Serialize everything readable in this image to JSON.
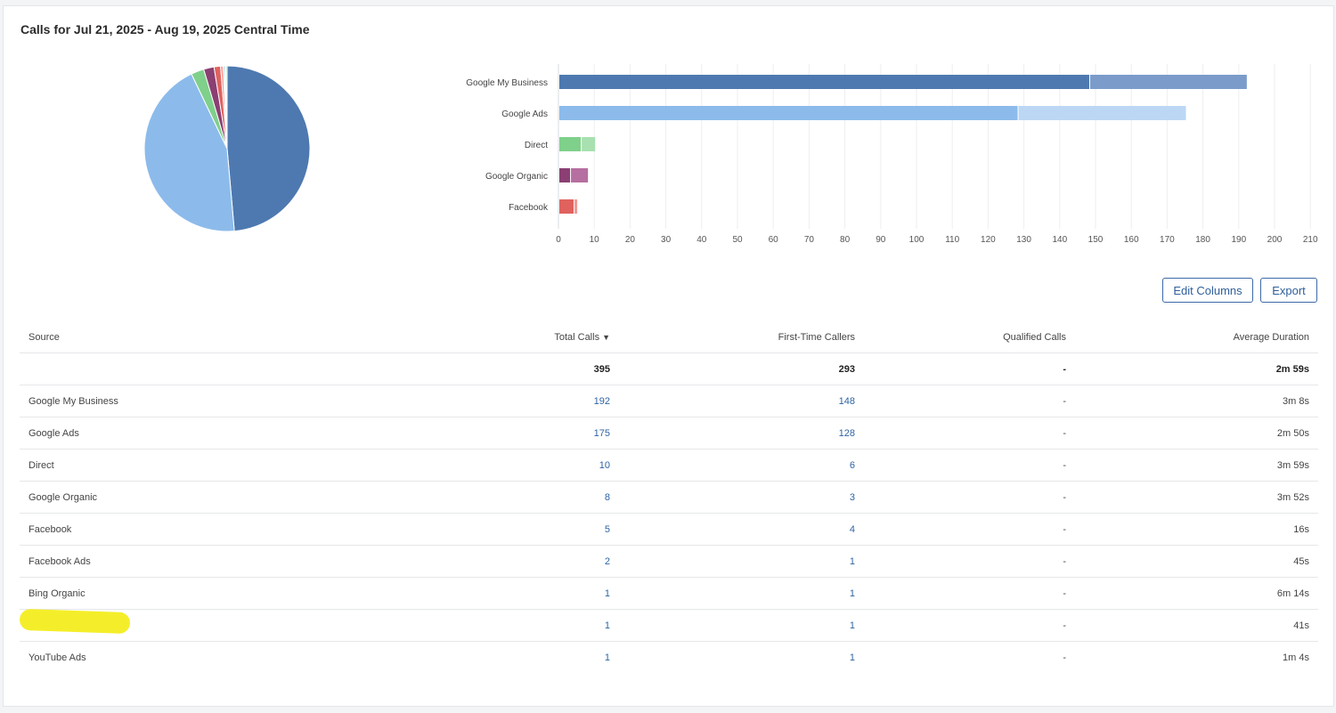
{
  "title": "Calls for Jul 21, 2025 - Aug 19, 2025 Central Time",
  "buttons": {
    "edit_columns": "Edit Columns",
    "export": "Export"
  },
  "colors": {
    "google_my_business": "#4e79b0",
    "google_my_business_light": "#7b9bca",
    "google_ads": "#8cbbeb",
    "google_ads_light": "#bcd7f4",
    "direct": "#7fd08b",
    "direct_light": "#a8e0b0",
    "google_organic": "#8b3f73",
    "google_organic_light": "#b56fa0",
    "facebook": "#e0625e",
    "facebook_light": "#f09a96",
    "teal": "#3fc1c0",
    "text_link": "#2f64a3"
  },
  "chart_data": [
    {
      "type": "pie",
      "series": [
        {
          "category": "Google My Business",
          "value": 192
        },
        {
          "category": "Google Ads",
          "value": 175
        },
        {
          "category": "Direct",
          "value": 10
        },
        {
          "category": "Google Organic",
          "value": 8
        },
        {
          "category": "Facebook",
          "value": 5
        },
        {
          "category": "Facebook Ads",
          "value": 2
        },
        {
          "category": "Bing Organic",
          "value": 1
        },
        {
          "category": "",
          "value": 1
        },
        {
          "category": "YouTube Ads",
          "value": 1
        }
      ],
      "title": ""
    },
    {
      "type": "bar",
      "orientation": "horizontal",
      "stacked": true,
      "categories": [
        "Google My Business",
        "Google Ads",
        "Direct",
        "Google Organic",
        "Facebook"
      ],
      "series": [
        {
          "name": "",
          "values": [
            148,
            128,
            6,
            3,
            4
          ]
        },
        {
          "name": "",
          "values": [
            44,
            47,
            4,
            5,
            1
          ]
        }
      ],
      "x_ticks": [
        0,
        10,
        20,
        30,
        40,
        50,
        60,
        70,
        80,
        90,
        100,
        110,
        120,
        130,
        140,
        150,
        160,
        170,
        180,
        190,
        200,
        210
      ],
      "xlim": [
        0,
        210
      ],
      "grid": true,
      "title": "",
      "xlabel": "",
      "ylabel": ""
    }
  ],
  "table": {
    "headers": {
      "source": "Source",
      "total_calls": "Total Calls",
      "first_time": "First-Time Callers",
      "qualified": "Qualified Calls",
      "avg_duration": "Average Duration"
    },
    "sort_indicator": "▼",
    "total": {
      "total_calls": "395",
      "first_time": "293",
      "qualified": "-",
      "avg_duration": "2m 59s"
    },
    "rows": [
      {
        "source": "Google My Business",
        "total_calls": "192",
        "first_time": "148",
        "qualified": "-",
        "avg_duration": "3m 8s"
      },
      {
        "source": "Google Ads",
        "total_calls": "175",
        "first_time": "128",
        "qualified": "-",
        "avg_duration": "2m 50s"
      },
      {
        "source": "Direct",
        "total_calls": "10",
        "first_time": "6",
        "qualified": "-",
        "avg_duration": "3m 59s"
      },
      {
        "source": "Google Organic",
        "total_calls": "8",
        "first_time": "3",
        "qualified": "-",
        "avg_duration": "3m 52s"
      },
      {
        "source": "Facebook",
        "total_calls": "5",
        "first_time": "4",
        "qualified": "-",
        "avg_duration": "16s"
      },
      {
        "source": "Facebook Ads",
        "total_calls": "2",
        "first_time": "1",
        "qualified": "-",
        "avg_duration": "45s"
      },
      {
        "source": "Bing Organic",
        "total_calls": "1",
        "first_time": "1",
        "qualified": "-",
        "avg_duration": "6m 14s"
      },
      {
        "source": "",
        "total_calls": "1",
        "first_time": "1",
        "qualified": "-",
        "avg_duration": "41s"
      },
      {
        "source": "YouTube Ads",
        "total_calls": "1",
        "first_time": "1",
        "qualified": "-",
        "avg_duration": "1m 4s"
      }
    ]
  }
}
